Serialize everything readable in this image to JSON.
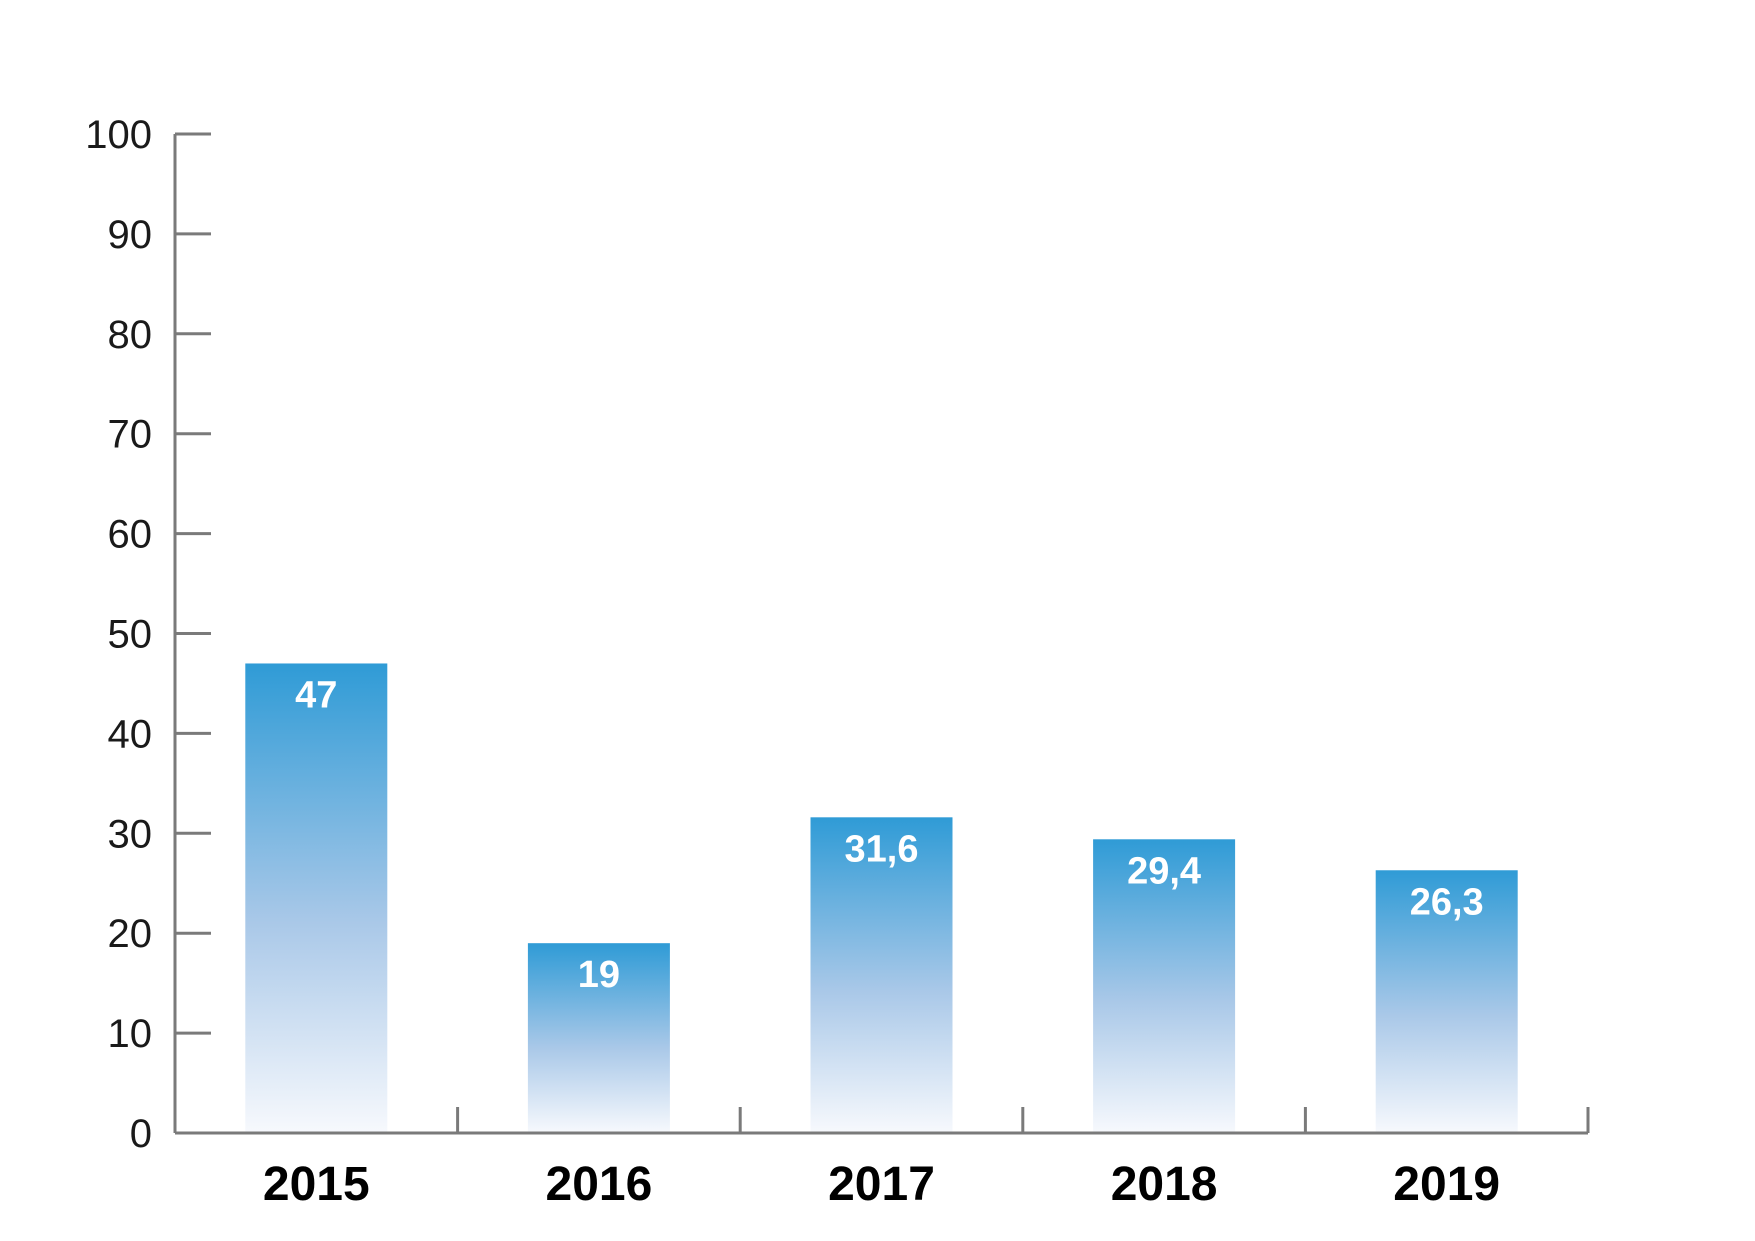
{
  "chart_data": {
    "type": "bar",
    "title": "",
    "xlabel": "",
    "ylabel": "",
    "categories": [
      "2015",
      "2016",
      "2017",
      "2018",
      "2019"
    ],
    "values": [
      47,
      19,
      31.6,
      29.4,
      26.3
    ],
    "value_labels": [
      "47",
      "19",
      "31,6",
      "29,4",
      "26,3"
    ],
    "ylim": [
      0,
      100
    ],
    "yticks": [
      0,
      10,
      20,
      30,
      40,
      50,
      60,
      70,
      80,
      90,
      100
    ],
    "ytick_labels": [
      "0",
      "10",
      "20",
      "30",
      "40",
      "50",
      "60",
      "70",
      "80",
      "90",
      "100"
    ],
    "grid": false,
    "legend": "none",
    "colors": {
      "bar_top": "#2f9bd6",
      "bar_bottom": "#f7f9fd",
      "axis": "#7a7a7a",
      "value_text": "#ffffff",
      "category_text": "#000000",
      "tick_text": "#1a1a1a"
    }
  }
}
